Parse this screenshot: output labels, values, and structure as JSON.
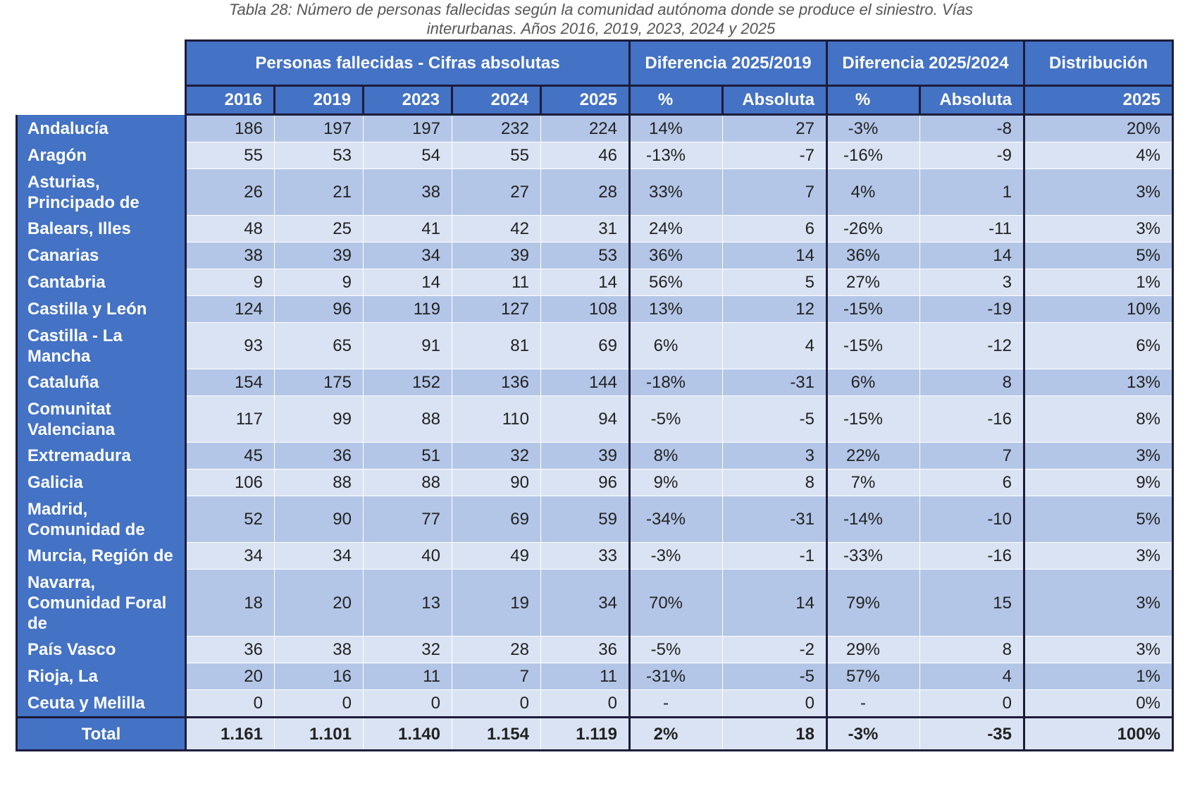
{
  "caption": [
    "Tabla 28: Número de personas fallecidas según la comunidad autónoma donde se produce el siniestro. Vías",
    "interurbanas. Años 2016, 2019, 2023, 2024 y 2025"
  ],
  "table": {
    "groups": [
      "Personas fallecidas - Cifras absolutas",
      "Diferencia 2025/2019",
      "Diferencia 2025/2024",
      "Distribución"
    ],
    "columns": [
      "2016",
      "2019",
      "2023",
      "2024",
      "2025",
      "%",
      "Absoluta",
      "%",
      "Absoluta",
      "2025"
    ],
    "rows": [
      [
        "Andalucía",
        "186",
        "197",
        "197",
        "232",
        "224",
        "14%",
        "27",
        "-3%",
        "-8",
        "20%"
      ],
      [
        "Aragón",
        "55",
        "53",
        "54",
        "55",
        "46",
        "-13%",
        "-7",
        "-16%",
        "-9",
        "4%"
      ],
      [
        "Asturias, Principado de",
        "26",
        "21",
        "38",
        "27",
        "28",
        "33%",
        "7",
        "4%",
        "1",
        "3%"
      ],
      [
        "Balears, Illes",
        "48",
        "25",
        "41",
        "42",
        "31",
        "24%",
        "6",
        "-26%",
        "-11",
        "3%"
      ],
      [
        "Canarias",
        "38",
        "39",
        "34",
        "39",
        "53",
        "36%",
        "14",
        "36%",
        "14",
        "5%"
      ],
      [
        "Cantabria",
        "9",
        "9",
        "14",
        "11",
        "14",
        "56%",
        "5",
        "27%",
        "3",
        "1%"
      ],
      [
        "Castilla y León",
        "124",
        "96",
        "119",
        "127",
        "108",
        "13%",
        "12",
        "-15%",
        "-19",
        "10%"
      ],
      [
        "Castilla - La Mancha",
        "93",
        "65",
        "91",
        "81",
        "69",
        "6%",
        "4",
        "-15%",
        "-12",
        "6%"
      ],
      [
        "Cataluña",
        "154",
        "175",
        "152",
        "136",
        "144",
        "-18%",
        "-31",
        "6%",
        "8",
        "13%"
      ],
      [
        "Comunitat Valenciana",
        "117",
        "99",
        "88",
        "110",
        "94",
        "-5%",
        "-5",
        "-15%",
        "-16",
        "8%"
      ],
      [
        "Extremadura",
        "45",
        "36",
        "51",
        "32",
        "39",
        "8%",
        "3",
        "22%",
        "7",
        "3%"
      ],
      [
        "Galicia",
        "106",
        "88",
        "88",
        "90",
        "96",
        "9%",
        "8",
        "7%",
        "6",
        "9%"
      ],
      [
        "Madrid, Comunidad de",
        "52",
        "90",
        "77",
        "69",
        "59",
        "-34%",
        "-31",
        "-14%",
        "-10",
        "5%"
      ],
      [
        "Murcia, Región de",
        "34",
        "34",
        "40",
        "49",
        "33",
        "-3%",
        "-1",
        "-33%",
        "-16",
        "3%"
      ],
      [
        "Navarra, Comunidad Foral de",
        "18",
        "20",
        "13",
        "19",
        "34",
        "70%",
        "14",
        "79%",
        "15",
        "3%"
      ],
      [
        "País Vasco",
        "36",
        "38",
        "32",
        "28",
        "36",
        "-5%",
        "-2",
        "29%",
        "8",
        "3%"
      ],
      [
        "Rioja, La",
        "20",
        "16",
        "11",
        "7",
        "11",
        "-31%",
        "-5",
        "57%",
        "4",
        "1%"
      ],
      [
        "Ceuta y Melilla",
        "0",
        "0",
        "0",
        "0",
        "0",
        "-",
        "0",
        "-",
        "0",
        "0%"
      ]
    ],
    "total": [
      "Total",
      "1.161",
      "1.101",
      "1.140",
      "1.154",
      "1.119",
      "2%",
      "18",
      "-3%",
      "-35",
      "100%"
    ]
  }
}
